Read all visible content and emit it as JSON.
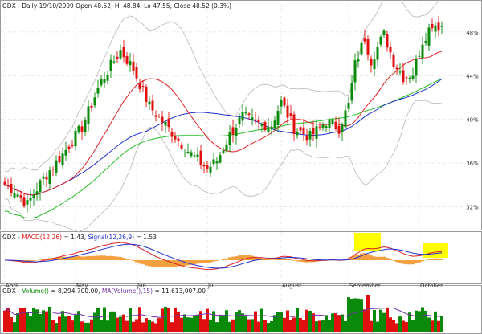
{
  "title": "GDX - Daily 19/10/2009 Open 48.52, Hi 48.84, Lo 47.55, Close 48.52 (0.3%)",
  "title_parts": {
    "symbol": "GDX",
    "rest": " - Daily 19/10/2009 Open 48.52, Hi 48.84, Lo 47.55, Close 48.52 (0.3%)"
  },
  "colors": {
    "up": "#0a8a0a",
    "down": "#e01010",
    "bollinger": "#b8b8b8",
    "ma_red": "#e02020",
    "ma_blue": "#2030d0",
    "ma_green": "#20c020",
    "macd_line": "#e02020",
    "signal_line": "#2030d0",
    "histogram": "#f3a040",
    "highlight": "#ffff00",
    "volume_ma": "#7030a0",
    "grid": "#cfcfcf",
    "axis_text": "#333333"
  },
  "chart_data": [
    {
      "type": "candlestick",
      "title": "GDX - Daily 19/10/2009 Open 48.52, Hi 48.84, Lo 47.55, Close 48.52 (0.3%)",
      "ylim": [
        30.2,
        49.9
      ],
      "yticks": [
        32,
        36,
        40,
        44,
        48
      ],
      "ytick_labels": [
        "32%",
        "36%",
        "40%",
        "44%",
        "48%"
      ],
      "xtick_labels": [
        "April",
        "May",
        "Jun",
        "Jul",
        "August",
        "September",
        "October"
      ],
      "xtick_positions": [
        0,
        22,
        41,
        63,
        86,
        107,
        129
      ],
      "grid": true,
      "overlays": [
        "Bollinger upper",
        "Bollinger lower",
        "moving average (red)",
        "moving average (blue)",
        "moving average (green)"
      ],
      "key_closes": [
        {
          "i": 0,
          "close": 34.0
        },
        {
          "i": 3,
          "close": 33.5
        },
        {
          "i": 7,
          "close": 32.2
        },
        {
          "i": 12,
          "close": 34.6
        },
        {
          "i": 18,
          "close": 36.8
        },
        {
          "i": 24,
          "close": 39.3
        },
        {
          "i": 30,
          "close": 43.5
        },
        {
          "i": 36,
          "close": 46.3
        },
        {
          "i": 40,
          "close": 44.6
        },
        {
          "i": 45,
          "close": 41.2
        },
        {
          "i": 52,
          "close": 38.8
        },
        {
          "i": 58,
          "close": 36.8
        },
        {
          "i": 63,
          "close": 35.5
        },
        {
          "i": 66,
          "close": 36.2
        },
        {
          "i": 70,
          "close": 38.6
        },
        {
          "i": 74,
          "close": 40.3
        },
        {
          "i": 78,
          "close": 39.6
        },
        {
          "i": 83,
          "close": 39.5
        },
        {
          "i": 86,
          "close": 41.6
        },
        {
          "i": 90,
          "close": 39.2
        },
        {
          "i": 95,
          "close": 38.4
        },
        {
          "i": 100,
          "close": 39.8
        },
        {
          "i": 104,
          "close": 39.2
        },
        {
          "i": 107,
          "close": 41.3
        },
        {
          "i": 109,
          "close": 45.0
        },
        {
          "i": 112,
          "close": 47.5
        },
        {
          "i": 114,
          "close": 45.4
        },
        {
          "i": 118,
          "close": 47.8
        },
        {
          "i": 121,
          "close": 45.3
        },
        {
          "i": 124,
          "close": 43.9
        },
        {
          "i": 127,
          "close": 44.2
        },
        {
          "i": 130,
          "close": 47.2
        },
        {
          "i": 133,
          "close": 48.8
        },
        {
          "i": 136,
          "close": 48.52
        }
      ]
    },
    {
      "type": "line",
      "title": "GDX - MACD(12,26) = 1.43, Signal(12,26,9) = 1.53",
      "labels": {
        "name": "GDX",
        "macd": "MACD(12,26)",
        "macd_value": "= 1.43,",
        "signal": "Signal(12,26,9)",
        "signal_value": "= 1.53"
      },
      "series": [
        {
          "name": "MACD(12,26)",
          "last": 1.43
        },
        {
          "name": "Signal(12,26,9)",
          "last": 1.53
        }
      ],
      "grid": true,
      "highlights": [
        "September peak",
        "October crossover"
      ]
    },
    {
      "type": "bar",
      "title": "GDX - Volume() = 8,294,700.00, MA(Volume(),15) = 11,613,007.00",
      "labels": {
        "name": "GDX",
        "volume": "Volume()",
        "volume_value": "= 8,294,700.00,",
        "ma": "MA(Volume(),15)",
        "ma_value": "= 11,613,007.00"
      },
      "values_last": {
        "volume": 8294700,
        "ma_volume_15": 11613007
      },
      "grid": true
    }
  ]
}
